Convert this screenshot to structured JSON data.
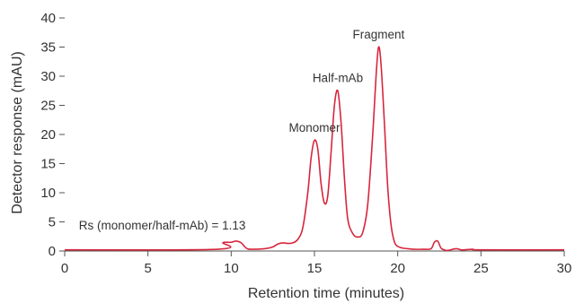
{
  "chart_data": {
    "type": "line",
    "title": "",
    "xlabel": "Retention time (minutes)",
    "ylabel": "Detector response (mAU)",
    "xlim": [
      0,
      30
    ],
    "ylim": [
      0,
      40
    ],
    "xticks": [
      0,
      5,
      10,
      15,
      20,
      25,
      30
    ],
    "yticks": [
      0,
      5,
      10,
      15,
      20,
      25,
      30,
      35,
      40
    ],
    "grid": false,
    "legend": "none",
    "line_color": "#d7263d",
    "series": [
      {
        "x": [
          0,
          9.2,
          9.5,
          9.7,
          10.0,
          10.3,
          10.6,
          10.9,
          11.2,
          12.0,
          12.5,
          12.8,
          13.1,
          13.4,
          13.7,
          14.0,
          14.3,
          14.6,
          14.8,
          15.0,
          15.2,
          15.4,
          15.6,
          15.8,
          16.0,
          16.2,
          16.4,
          16.6,
          16.8,
          17.0,
          17.3,
          17.6,
          17.9,
          18.2,
          18.5,
          18.7,
          18.85,
          19.0,
          19.2,
          19.4,
          19.6,
          19.8,
          20.0,
          20.3,
          20.6,
          21.0,
          21.5,
          22.0,
          22.2,
          22.4,
          22.6,
          22.8,
          23.0,
          23.5,
          23.8,
          24.0,
          24.5,
          25.0,
          30
        ],
        "y": [
          0.2,
          0.3,
          1.4,
          1.5,
          1.5,
          1.7,
          1.4,
          0.5,
          0.3,
          0.4,
          0.7,
          1.2,
          1.4,
          1.3,
          1.4,
          2.0,
          4.0,
          10.0,
          16.0,
          19.0,
          17.5,
          11.5,
          8.2,
          9.5,
          17.0,
          25.0,
          27.5,
          22.0,
          12.5,
          5.5,
          3.0,
          2.4,
          3.2,
          8.0,
          20.0,
          30.0,
          35.0,
          32.0,
          22.0,
          11.0,
          4.5,
          1.6,
          0.8,
          0.5,
          0.4,
          0.3,
          0.3,
          0.4,
          1.5,
          1.7,
          0.5,
          0.2,
          0.1,
          0.4,
          0.2,
          0.2,
          0.3,
          0.2,
          0.2
        ]
      }
    ],
    "annotations": {
      "monomer": {
        "text": "Monomer",
        "x": 15.0,
        "y": 20.5
      },
      "half_mab": {
        "text": "Half-mAb",
        "x": 16.4,
        "y": 29.0
      },
      "fragment": {
        "text": "Fragment",
        "x": 18.85,
        "y": 36.5
      },
      "resolution": {
        "text": "Rs (monomer/half-mAb) = 1.13",
        "x": 0.85,
        "y": 3.7
      }
    }
  }
}
